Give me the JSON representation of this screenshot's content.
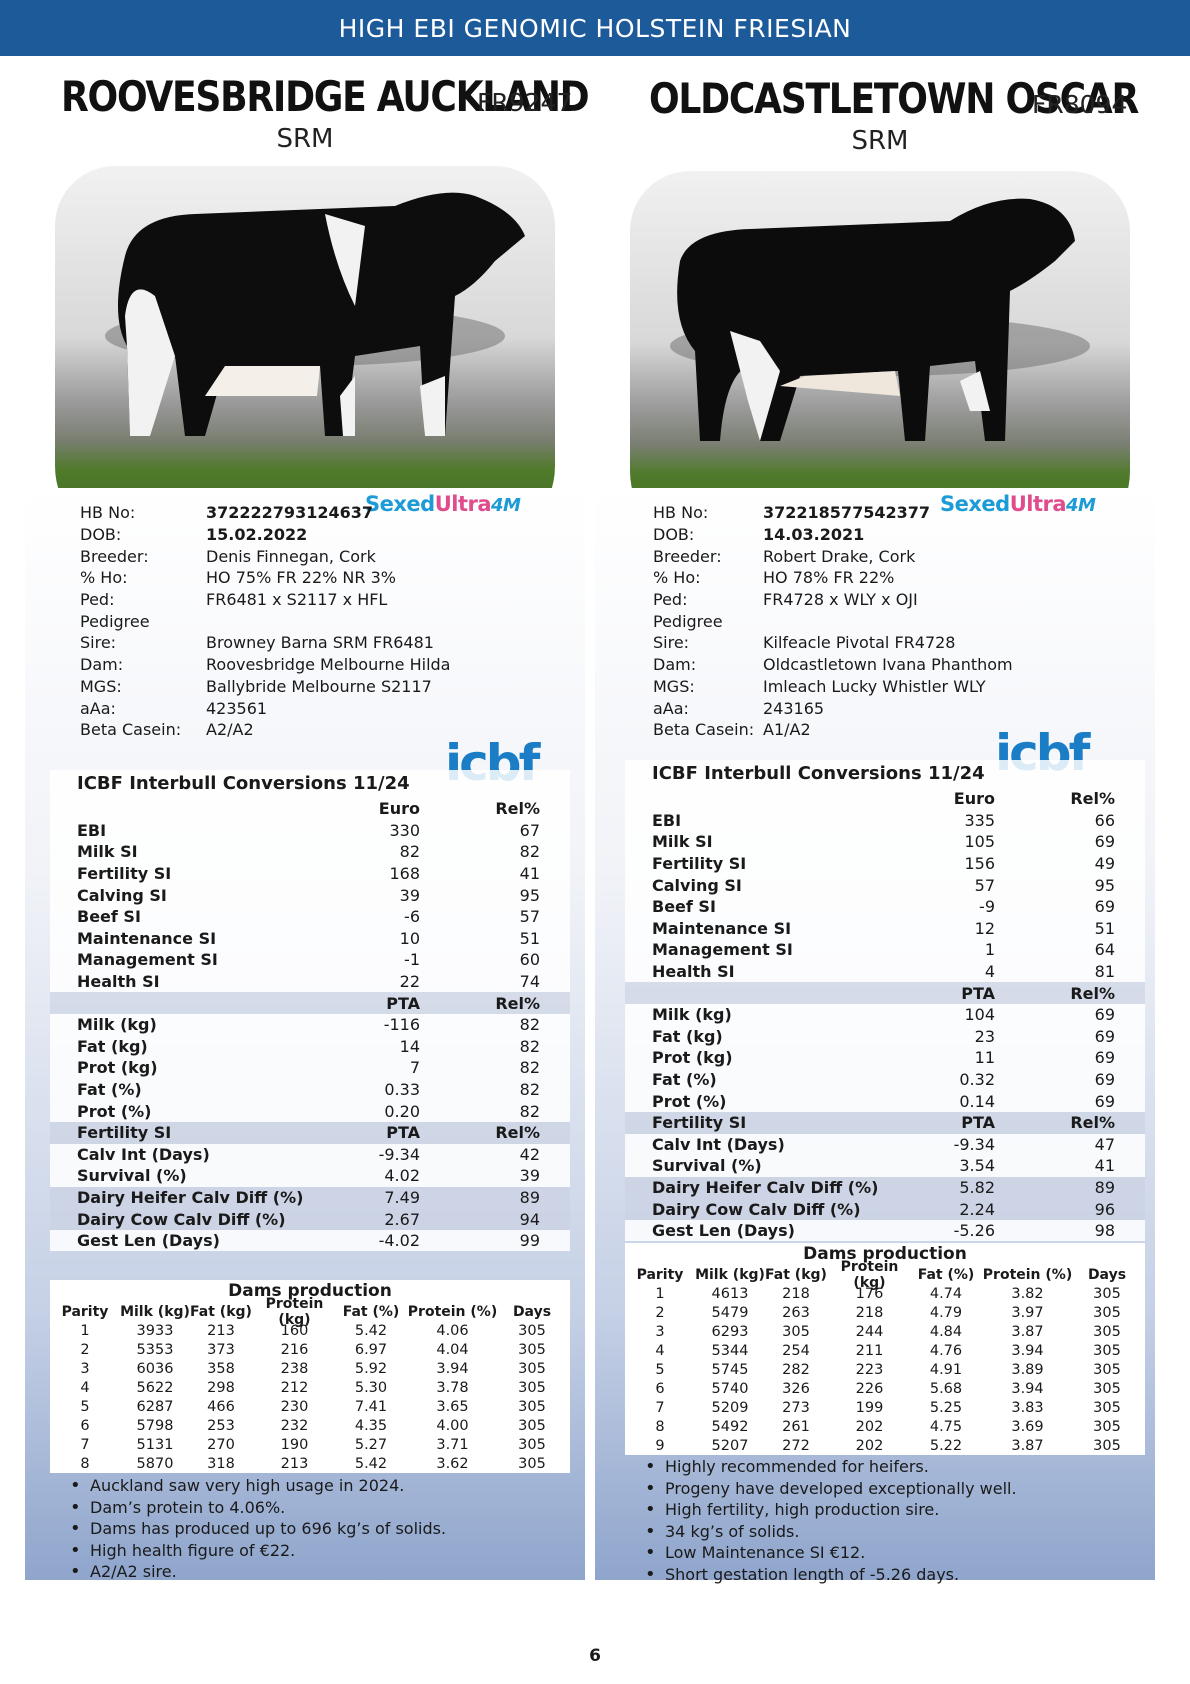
{
  "banner": "HIGH EBI GENOMIC HOLSTEIN FRIESIAN",
  "page_number": "6",
  "logos": {
    "sexed_a": "Sexed",
    "sexed_b": "Ultra",
    "sexed_c": "4M",
    "icbf": "icbf"
  },
  "labels": {
    "hb": "HB No:",
    "dob": "DOB:",
    "breeder": "Breeder:",
    "ho": "% Ho:",
    "ped": "Ped:",
    "pedigree": "Pedigree",
    "sire": "Sire:",
    "dam": "Dam:",
    "mgs": "MGS:",
    "aaa": "aAa:",
    "beta": "Beta Casein:",
    "stats_title": "ICBF Interbull Conversions 11/24",
    "euro": "Euro",
    "rel": "Rel%",
    "pta": "PTA",
    "ebi": "EBI",
    "milk_si": "Milk SI",
    "fertility_si": "Fertility SI",
    "calving_si": "Calving SI",
    "beef_si": "Beef SI",
    "maintenance_si": "Maintenance SI",
    "management_si": "Management SI",
    "health_si": "Health SI",
    "milk_kg": "Milk (kg)",
    "fat_kg": "Fat (kg)",
    "prot_kg": "Prot (kg)",
    "fat_pct": "Fat (%)",
    "prot_pct": "Prot (%)",
    "calv_int": "Calv Int (Days)",
    "survival": "Survival (%)",
    "heifer_calv": "Dairy Heifer Calv Diff (%)",
    "cow_calv": "Dairy Cow Calv Diff (%)",
    "gest_len": "Gest Len (Days)",
    "dams_title": "Dams production",
    "dams_cols": [
      "Parity",
      "Milk (kg)",
      "Fat (kg)",
      "Protein (kg)",
      "Fat (%)",
      "Protein (%)",
      "Days"
    ]
  },
  "left": {
    "name": "ROOVESBRIDGE AUCKLAND",
    "code": "FR9247",
    "type": "SRM",
    "hb": "372222793124637",
    "dob": "15.02.2022",
    "breeder": "Denis Finnegan, Cork",
    "ho": "HO 75% FR 22% NR 3%",
    "ped": "FR6481 x S2117 x HFL",
    "sire": "Browney Barna SRM FR6481",
    "dam": "Roovesbridge Melbourne Hilda",
    "mgs": "Ballybride Melbourne S2117",
    "aaa": "423561",
    "beta": "A2/A2",
    "si": [
      [
        "330",
        "67"
      ],
      [
        "82",
        "82"
      ],
      [
        "168",
        "41"
      ],
      [
        "39",
        "95"
      ],
      [
        "-6",
        "57"
      ],
      [
        "10",
        "51"
      ],
      [
        "-1",
        "60"
      ],
      [
        "22",
        "74"
      ]
    ],
    "prod": [
      [
        "-116",
        "82"
      ],
      [
        "14",
        "82"
      ],
      [
        "7",
        "82"
      ],
      [
        "0.33",
        "82"
      ],
      [
        "0.20",
        "82"
      ]
    ],
    "fert": [
      [
        "-9.34",
        "42"
      ],
      [
        "4.02",
        "39"
      ],
      [
        "7.49",
        "89"
      ],
      [
        "2.67",
        "94"
      ],
      [
        "-4.02",
        "99"
      ]
    ],
    "dams": [
      [
        "1",
        "3933",
        "213",
        "160",
        "5.42",
        "4.06",
        "305"
      ],
      [
        "2",
        "5353",
        "373",
        "216",
        "6.97",
        "4.04",
        "305"
      ],
      [
        "3",
        "6036",
        "358",
        "238",
        "5.92",
        "3.94",
        "305"
      ],
      [
        "4",
        "5622",
        "298",
        "212",
        "5.30",
        "3.78",
        "305"
      ],
      [
        "5",
        "6287",
        "466",
        "230",
        "7.41",
        "3.65",
        "305"
      ],
      [
        "6",
        "5798",
        "253",
        "232",
        "4.35",
        "4.00",
        "305"
      ],
      [
        "7",
        "5131",
        "270",
        "190",
        "5.27",
        "3.71",
        "305"
      ],
      [
        "8",
        "5870",
        "318",
        "213",
        "5.42",
        "3.62",
        "305"
      ]
    ],
    "notes": [
      "Auckland saw very high usage in 2024.",
      "Dam’s protein to 4.06%.",
      "Dams has produced up to 696 kg’s of solids.",
      "High health figure of €22.",
      "A2/A2 sire."
    ]
  },
  "right": {
    "name": "OLDCASTLETOWN OSCAR",
    "code": "FR8094",
    "type": "SRM",
    "hb": "372218577542377",
    "dob": "14.03.2021",
    "breeder": "Robert Drake, Cork",
    "ho": "HO 78% FR 22%",
    "ped": "FR4728 x WLY x OJI",
    "sire": "Kilfeacle Pivotal FR4728",
    "dam": "Oldcastletown Ivana Phanthom",
    "mgs": "Imleach Lucky Whistler WLY",
    "aaa": "243165",
    "beta": "A1/A2",
    "si": [
      [
        "335",
        "66"
      ],
      [
        "105",
        "69"
      ],
      [
        "156",
        "49"
      ],
      [
        "57",
        "95"
      ],
      [
        "-9",
        "69"
      ],
      [
        "12",
        "51"
      ],
      [
        "1",
        "64"
      ],
      [
        "4",
        "81"
      ]
    ],
    "prod": [
      [
        "104",
        "69"
      ],
      [
        "23",
        "69"
      ],
      [
        "11",
        "69"
      ],
      [
        "0.32",
        "69"
      ],
      [
        "0.14",
        "69"
      ]
    ],
    "fert": [
      [
        "-9.34",
        "47"
      ],
      [
        "3.54",
        "41"
      ],
      [
        "5.82",
        "89"
      ],
      [
        "2.24",
        "96"
      ],
      [
        "-5.26",
        "98"
      ]
    ],
    "dams": [
      [
        "1",
        "4613",
        "218",
        "176",
        "4.74",
        "3.82",
        "305"
      ],
      [
        "2",
        "5479",
        "263",
        "218",
        "4.79",
        "3.97",
        "305"
      ],
      [
        "3",
        "6293",
        "305",
        "244",
        "4.84",
        "3.87",
        "305"
      ],
      [
        "4",
        "5344",
        "254",
        "211",
        "4.76",
        "3.94",
        "305"
      ],
      [
        "5",
        "5745",
        "282",
        "223",
        "4.91",
        "3.89",
        "305"
      ],
      [
        "6",
        "5740",
        "326",
        "226",
        "5.68",
        "3.94",
        "305"
      ],
      [
        "7",
        "5209",
        "273",
        "199",
        "5.25",
        "3.83",
        "305"
      ],
      [
        "8",
        "5492",
        "261",
        "202",
        "4.75",
        "3.69",
        "305"
      ],
      [
        "9",
        "5207",
        "272",
        "202",
        "5.22",
        "3.87",
        "305"
      ]
    ],
    "notes": [
      "Highly recommended for heifers.",
      "Progeny have developed exceptionally well.",
      "High fertility, high production sire.",
      "34 kg’s of solids.",
      "Low Maintenance SI €12.",
      "Short gestation length of -5.26 days."
    ]
  }
}
